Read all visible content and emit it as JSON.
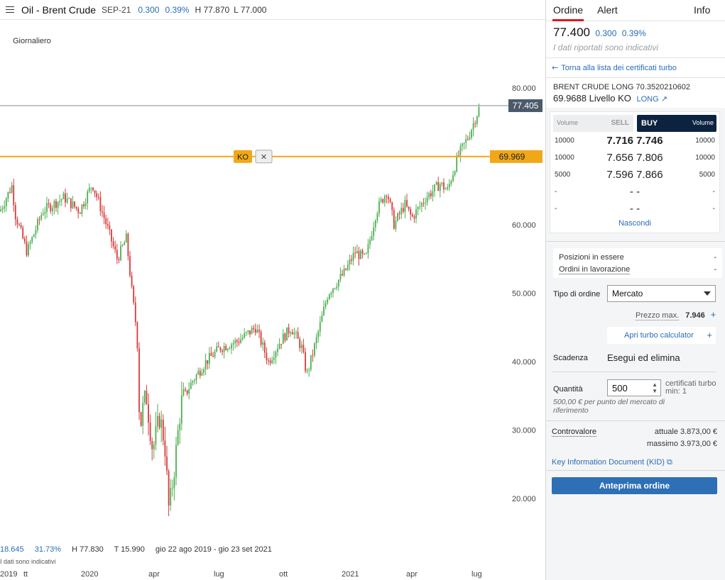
{
  "header": {
    "title": "Oil - Brent Crude",
    "symbol": "SEP-21",
    "change_abs": "0.300",
    "change_pct": "0.39%",
    "high": "H 77.870",
    "low": "L 77.000"
  },
  "period_label": "Giornaliero",
  "stats": {
    "change_abs": "18.645",
    "change_pct": "31.73%",
    "high": "H 77.830",
    "low": "T 15.990",
    "range": "gio 22 ago 2019 - gio 23 set 2021",
    "note": "I dati sono indicativi"
  },
  "chart_labels": {
    "last_price": "77.405",
    "ko_tag": "KO",
    "ko_close": "✕",
    "ko_level": "69.969"
  },
  "chart_data": {
    "type": "candlestick",
    "yticks": [
      20,
      30,
      40,
      50,
      60,
      80
    ],
    "ytick_labels": [
      "20.000",
      "30.000",
      "40.000",
      "50.000",
      "60.000",
      "80.000"
    ],
    "ylim": [
      13,
      91.5
    ],
    "xtick_labels": [
      "2019",
      "tt",
      "2020",
      "apr",
      "lug",
      "ott",
      "2021",
      "apr",
      "lug"
    ],
    "last_price": 77.405,
    "ko_level": 69.969,
    "trend": [
      [
        0,
        62
      ],
      [
        18,
        66
      ],
      [
        20,
        62
      ],
      [
        38,
        56
      ],
      [
        60,
        62
      ],
      [
        90,
        64
      ],
      [
        112,
        62
      ],
      [
        130,
        66
      ],
      [
        150,
        60
      ],
      [
        165,
        55
      ],
      [
        178,
        58
      ],
      [
        186,
        50
      ],
      [
        193,
        44
      ],
      [
        197,
        30
      ],
      [
        205,
        36
      ],
      [
        215,
        27
      ],
      [
        225,
        32
      ],
      [
        232,
        28
      ],
      [
        238,
        18
      ],
      [
        245,
        24
      ],
      [
        255,
        34
      ],
      [
        270,
        37
      ],
      [
        290,
        40
      ],
      [
        310,
        42
      ],
      [
        335,
        43
      ],
      [
        360,
        45
      ],
      [
        378,
        40
      ],
      [
        395,
        43
      ],
      [
        410,
        45
      ],
      [
        425,
        42
      ],
      [
        432,
        38
      ],
      [
        445,
        43
      ],
      [
        462,
        50
      ],
      [
        485,
        53
      ],
      [
        500,
        56
      ],
      [
        515,
        55
      ],
      [
        530,
        62
      ],
      [
        545,
        65
      ],
      [
        555,
        60
      ],
      [
        570,
        63
      ],
      [
        580,
        61
      ],
      [
        600,
        64
      ],
      [
        620,
        66
      ],
      [
        630,
        65
      ],
      [
        645,
        70
      ],
      [
        660,
        73
      ],
      [
        676,
        77.4
      ]
    ]
  },
  "tabs": {
    "ordine": "Ordine",
    "alert": "Alert",
    "info": "Info"
  },
  "quote": {
    "price": "77.400",
    "change_abs": "0.300",
    "change_pct": "0.39%",
    "disclaimer": "I dati riportati sono indicativi"
  },
  "back_link": "Torna alla lista dei certificati turbo",
  "product": {
    "name": "BRENT CRUDE LONG 70.3520210602",
    "level": "69.9688 Livello KO",
    "direction": "LONG"
  },
  "orderbook": {
    "sell_header": "SELL",
    "buy_header": "BUY",
    "volume_label": "Volume",
    "rows": [
      {
        "sell_vol": "10000",
        "prices": "7.716 7.746",
        "buy_vol": "10000"
      },
      {
        "sell_vol": "10000",
        "prices": "7.656 7.806",
        "buy_vol": "10000"
      },
      {
        "sell_vol": "5000",
        "prices": "7.596 7.866",
        "buy_vol": "5000"
      },
      {
        "sell_vol": "-",
        "prices": "- -",
        "buy_vol": "-"
      },
      {
        "sell_vol": "-",
        "prices": "- -",
        "buy_vol": "-"
      }
    ],
    "hide_label": "Nascondi"
  },
  "positions": {
    "open_label": "Posizioni in essere",
    "open_value": "-",
    "working_label": "Ordini in lavorazione",
    "working_value": "-"
  },
  "order_form": {
    "type_label": "Tipo di ordine",
    "type_value": "Mercato",
    "max_price_label": "Prezzo max.",
    "max_price_value": "7.946",
    "calc_label": "Apri turbo calculator",
    "expiry_label": "Scadenza",
    "expiry_value": "Esegui ed elimina",
    "qty_label": "Quantità",
    "qty_value": "500",
    "qty_note_1": "certificati turbo",
    "qty_note_2": "min: 1",
    "qty_hint": "500,00 € per punto del mercato di riferimento",
    "value_label": "Controvalore",
    "value_current": "attuale 3.873,00 €",
    "value_max": "massimo 3.973,00 €",
    "kid_label": "Key Information Document (KID)",
    "preview_label": "Anteprima ordine"
  },
  "colors": {
    "accent": "#2e6fb6",
    "ko_line": "#f0a818",
    "up": "#4caf50",
    "down": "#d83a3a",
    "buy_header": "#0c2340",
    "tab_underline": "#e3161b"
  }
}
